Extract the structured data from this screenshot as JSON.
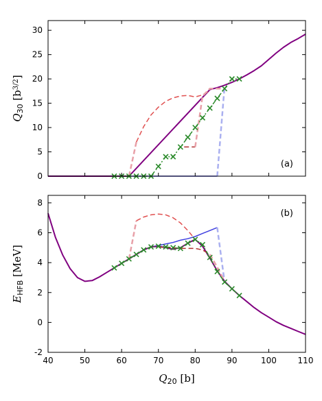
{
  "chart_data": [
    {
      "type": "line",
      "panel_label": "(a)",
      "xlabel": "",
      "ylabel_main": "Q",
      "ylabel_sub": "30",
      "ylabel_unit": " [b",
      "ylabel_sup": "3/2",
      "ylabel_close": "]",
      "xlim": [
        40,
        110
      ],
      "ylim": [
        0,
        32
      ],
      "xticks": [
        40,
        50,
        60,
        70,
        80,
        90,
        100,
        110
      ],
      "yticks": [
        0,
        5,
        10,
        15,
        20,
        25,
        30
      ],
      "series": [
        {
          "color": "#4040e0",
          "style": "solid",
          "width": 1.5,
          "x": [
            40,
            86
          ],
          "y": [
            0,
            0
          ]
        },
        {
          "color": "#aab0f0",
          "style": "dashed",
          "width": 2.5,
          "x": [
            86,
            88
          ],
          "y": [
            0,
            18.5
          ]
        },
        {
          "color": "#800080",
          "style": "solid",
          "width": 2,
          "x": [
            40,
            62,
            84,
            86,
            88,
            90,
            92,
            94,
            96,
            98,
            100,
            102,
            104,
            106,
            108,
            110
          ],
          "y": [
            0,
            0,
            17.8,
            18.2,
            18.7,
            19.3,
            20.0,
            20.8,
            21.7,
            22.7,
            24.0,
            25.3,
            26.5,
            27.5,
            28.3,
            29.2
          ]
        },
        {
          "color": "#e05050",
          "style": "dashed",
          "width": 1.5,
          "x": [
            64,
            66,
            68,
            70,
            72,
            74,
            76,
            78,
            80,
            82,
            84
          ],
          "y": [
            7.0,
            10.2,
            12.6,
            14.2,
            15.4,
            16.1,
            16.5,
            16.6,
            16.3,
            16.7,
            17.6
          ]
        },
        {
          "color": "#e8a0a8",
          "style": "dashed",
          "width": 2.5,
          "x": [
            62,
            64
          ],
          "y": [
            0,
            7.0
          ]
        },
        {
          "color": "#b03030",
          "style": "dashed",
          "width": 1.5,
          "x": [
            77,
            80
          ],
          "y": [
            6.0,
            6.0
          ]
        },
        {
          "color": "#e8a0a8",
          "style": "dashed",
          "width": 2.5,
          "x": [
            80,
            82,
            84,
            86,
            88
          ],
          "y": [
            6.0,
            16.5,
            18.0,
            18.0,
            18.0
          ]
        },
        {
          "color": "#2a8a2a",
          "style": "dashdot",
          "width": 1.5,
          "marker": "x",
          "x": [
            58,
            60,
            62,
            64,
            66,
            68,
            70,
            72,
            74,
            76,
            78,
            80,
            82,
            84,
            86,
            88,
            90,
            92
          ],
          "y": [
            0,
            0,
            0,
            0,
            0,
            0,
            2.0,
            4.0,
            4.0,
            6.0,
            8.0,
            10.0,
            12.0,
            14.0,
            16.0,
            18.0,
            20.0,
            20.0
          ]
        }
      ]
    },
    {
      "type": "line",
      "panel_label": "(b)",
      "xlabel_main": "Q",
      "xlabel_sub": "20",
      "xlabel_unit": " [b]",
      "ylabel_main": "E",
      "ylabel_sub": "HFB",
      "ylabel_unit": " [MeV]",
      "xlim": [
        40,
        110
      ],
      "ylim": [
        -2,
        8.5
      ],
      "xticks": [
        40,
        50,
        60,
        70,
        80,
        90,
        100,
        110
      ],
      "yticks": [
        -2,
        0,
        2,
        4,
        6,
        8
      ],
      "series": [
        {
          "color": "#4040e0",
          "style": "solid",
          "width": 1.5,
          "x": [
            68,
            70,
            72,
            74,
            76,
            78,
            80,
            82,
            84,
            86
          ],
          "y": [
            5.05,
            5.15,
            5.25,
            5.35,
            5.5,
            5.6,
            5.75,
            5.95,
            6.15,
            6.35
          ]
        },
        {
          "color": "#aab0f0",
          "style": "dashed",
          "width": 2.5,
          "x": [
            86,
            88
          ],
          "y": [
            6.35,
            2.7
          ]
        },
        {
          "color": "#800080",
          "style": "solid",
          "width": 2,
          "x": [
            40,
            42,
            44,
            46,
            48,
            50,
            52,
            54,
            56,
            58,
            60,
            62,
            64,
            66,
            68,
            70,
            72,
            74,
            76,
            78,
            80,
            82,
            84,
            86,
            88,
            90,
            92,
            94,
            96,
            98,
            100,
            102,
            104,
            106,
            108,
            110
          ],
          "y": [
            7.3,
            5.7,
            4.5,
            3.6,
            3.0,
            2.75,
            2.8,
            3.05,
            3.35,
            3.65,
            3.95,
            4.25,
            4.55,
            4.85,
            5.05,
            5.1,
            5.0,
            4.9,
            5.0,
            5.3,
            5.55,
            5.1,
            4.3,
            3.45,
            2.75,
            2.25,
            1.8,
            1.4,
            1.0,
            0.65,
            0.35,
            0.05,
            -0.2,
            -0.4,
            -0.6,
            -0.8
          ]
        },
        {
          "color": "#e05050",
          "style": "dashed",
          "width": 1.5,
          "x": [
            64,
            66,
            68,
            70,
            72,
            74,
            76,
            78,
            80
          ],
          "y": [
            6.8,
            7.05,
            7.2,
            7.25,
            7.2,
            7.0,
            6.65,
            6.15,
            5.55
          ]
        },
        {
          "color": "#e8a0a8",
          "style": "dashed",
          "width": 2.5,
          "x": [
            62,
            64
          ],
          "y": [
            4.25,
            6.8
          ]
        },
        {
          "color": "#b03030",
          "style": "dashed",
          "width": 1.5,
          "x": [
            70,
            72,
            74,
            76,
            78,
            80,
            82,
            84
          ],
          "y": [
            5.05,
            5.0,
            5.0,
            4.95,
            4.95,
            4.95,
            4.85,
            4.55
          ]
        },
        {
          "color": "#e8a0a8",
          "style": "dashed",
          "width": 2.5,
          "x": [
            84,
            86,
            88
          ],
          "y": [
            4.55,
            3.7,
            2.75
          ]
        },
        {
          "color": "#2a8a2a",
          "style": "dashdot",
          "width": 1.5,
          "marker": "x",
          "x": [
            58,
            60,
            62,
            64,
            66,
            68,
            70,
            72,
            74,
            76,
            78,
            80,
            82,
            84,
            86,
            88,
            90,
            92
          ],
          "y": [
            3.65,
            3.95,
            4.25,
            4.55,
            4.85,
            5.05,
            5.1,
            5.05,
            5.0,
            4.95,
            5.3,
            5.55,
            5.2,
            4.35,
            3.4,
            2.7,
            2.25,
            1.8
          ]
        }
      ]
    }
  ]
}
